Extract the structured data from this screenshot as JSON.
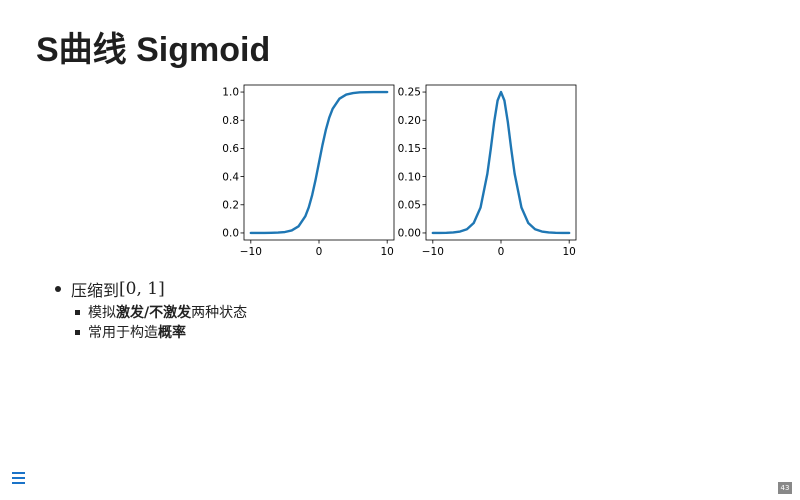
{
  "slide": {
    "title": "S曲线 Sigmoid",
    "page_number": "43"
  },
  "bullets": {
    "main_prefix": "压缩到",
    "main_math": "[0, 1]",
    "sub": [
      {
        "t1": "模拟",
        "b1": "激发/不激发",
        "t2": "两种状态",
        "b2": ""
      },
      {
        "t1": "常用于构造",
        "b1": "",
        "t2": "",
        "b2": "概率"
      }
    ]
  },
  "icons": {
    "menu": "hamburger-menu-icon"
  },
  "colors": {
    "line": "#1f77b4",
    "menu": "#1a73c8"
  },
  "chart_data": [
    {
      "type": "line",
      "title": "",
      "xlabel": "",
      "ylabel": "",
      "xlim": [
        -11,
        11
      ],
      "ylim": [
        -0.05,
        1.05
      ],
      "xticks": [
        -10,
        0,
        10
      ],
      "xtick_labels": [
        "−10",
        "0",
        "10"
      ],
      "yticks": [
        0.0,
        0.2,
        0.4,
        0.6,
        0.8,
        1.0
      ],
      "ytick_labels": [
        "0.0",
        "0.2",
        "0.4",
        "0.6",
        "0.8",
        "1.0"
      ],
      "grid": false,
      "series": [
        {
          "x": [
            -10,
            -9,
            -8,
            -7,
            -6,
            -5,
            -4,
            -3,
            -2,
            -1.5,
            -1,
            -0.5,
            0,
            0.5,
            1,
            1.5,
            2,
            3,
            4,
            5,
            6,
            7,
            8,
            9,
            10
          ],
          "y": [
            0.0,
            0.0001,
            0.0003,
            0.0009,
            0.0025,
            0.0067,
            0.018,
            0.047,
            0.119,
            0.182,
            0.269,
            0.378,
            0.5,
            0.622,
            0.731,
            0.818,
            0.881,
            0.953,
            0.982,
            0.993,
            0.998,
            0.999,
            0.9997,
            0.9999,
            1.0
          ]
        }
      ]
    },
    {
      "type": "line",
      "title": "",
      "xlabel": "",
      "ylabel": "",
      "xlim": [
        -11,
        11
      ],
      "ylim": [
        -0.0125,
        0.2625
      ],
      "xticks": [
        -10,
        0,
        10
      ],
      "xtick_labels": [
        "−10",
        "0",
        "10"
      ],
      "yticks": [
        0.0,
        0.05,
        0.1,
        0.15,
        0.2,
        0.25
      ],
      "ytick_labels": [
        "0.00",
        "0.05",
        "0.10",
        "0.15",
        "0.20",
        "0.25"
      ],
      "grid": false,
      "series": [
        {
          "x": [
            -10,
            -9,
            -8,
            -7,
            -6,
            -5,
            -4,
            -3,
            -2,
            -1.5,
            -1,
            -0.5,
            0,
            0.5,
            1,
            1.5,
            2,
            3,
            4,
            5,
            6,
            7,
            8,
            9,
            10
          ],
          "y": [
            0.0,
            0.0001,
            0.0003,
            0.0009,
            0.0025,
            0.0066,
            0.0177,
            0.0452,
            0.105,
            0.149,
            0.197,
            0.235,
            0.25,
            0.235,
            0.197,
            0.149,
            0.105,
            0.0452,
            0.0177,
            0.0066,
            0.0025,
            0.0009,
            0.0003,
            0.0001,
            0.0
          ]
        }
      ]
    }
  ]
}
